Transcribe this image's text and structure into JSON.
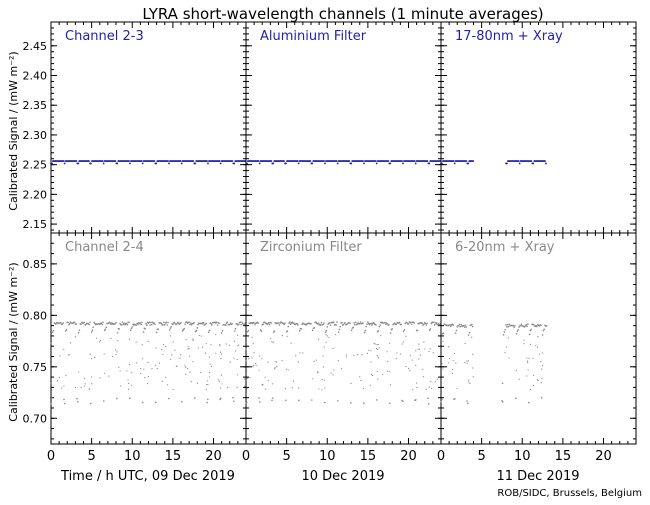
{
  "title": "LYRA short-wavelength channels (1 minute averages)",
  "ylabel": "Calibrated Signal / (mW m⁻²)",
  "day_labels": [
    "Time / h UTC, 09 Dec 2019",
    "10 Dec 2019",
    "11 Dec 2019"
  ],
  "credit": "ROB/SIDC, Brussels, Belgium",
  "colors": {
    "top_series": "#2222aa",
    "bottom_series": "#888888",
    "frame": "#000000"
  },
  "chart_data": [
    {
      "type": "scatter",
      "row": "top",
      "ylim": [
        2.135,
        2.49
      ],
      "yticks": [
        "2.15",
        "2.20",
        "2.25",
        "2.30",
        "2.35",
        "2.40",
        "2.45"
      ],
      "xlim": [
        0,
        24
      ],
      "xticks": [
        "0",
        "5",
        "10",
        "15",
        "20"
      ],
      "panels": [
        {
          "label": "Channel 2-3",
          "day": "09 Dec 2019",
          "segments": [
            [
              0,
              24
            ]
          ],
          "baseline": 2.252,
          "top_level": 2.256,
          "dip_every_h": 1.6
        },
        {
          "label": "Aluminium Filter",
          "day": "10 Dec 2019",
          "segments": [
            [
              0,
              24
            ]
          ],
          "baseline": 2.252,
          "top_level": 2.256,
          "dip_every_h": 1.6
        },
        {
          "label": "17-80nm + Xray",
          "day": "11 Dec 2019",
          "segments": [
            [
              0,
              4
            ],
            [
              8,
              13
            ]
          ],
          "baseline": 2.252,
          "top_level": 2.256,
          "dip_every_h": 1.6
        }
      ]
    },
    {
      "type": "scatter",
      "row": "bottom",
      "ylim": [
        0.675,
        0.88
      ],
      "yticks": [
        "0.70",
        "0.75",
        "0.80",
        "0.85"
      ],
      "xlim": [
        0,
        24
      ],
      "xticks": [
        "0",
        "5",
        "10",
        "15",
        "20"
      ],
      "panels": [
        {
          "label": "Channel 2-4",
          "day": "09 Dec 2019",
          "segments": [
            [
              0,
              24
            ]
          ],
          "top_level": 0.792,
          "low_level": 0.717,
          "dip_every_h": 1.6
        },
        {
          "label": "Zirconium Filter",
          "day": "10 Dec 2019",
          "segments": [
            [
              0,
              24
            ]
          ],
          "top_level": 0.792,
          "low_level": 0.717,
          "dip_every_h": 1.6
        },
        {
          "label": "6-20nm + Xray",
          "day": "11 Dec 2019",
          "segments": [
            [
              0,
              4
            ],
            [
              7.5,
              13
            ]
          ],
          "top_level": 0.79,
          "low_level": 0.717,
          "dip_every_h": 1.6
        }
      ]
    }
  ]
}
